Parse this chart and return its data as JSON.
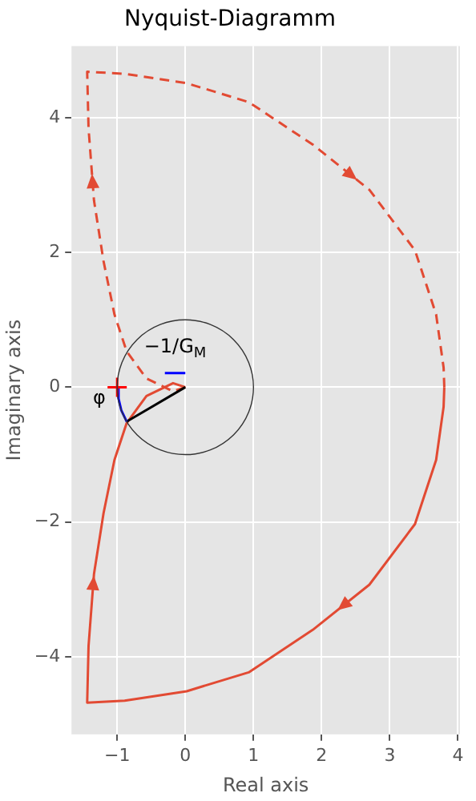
{
  "chart_data": {
    "type": "line",
    "title": "Nyquist-Diagramm",
    "xlabel": "Real axis",
    "ylabel": "Imaginary axis",
    "xlim": [
      -1.67,
      4.03
    ],
    "ylim": [
      -5.15,
      5.06
    ],
    "xticks": [
      {
        "value": -1,
        "label": "−1"
      },
      0,
      1,
      2,
      3,
      4
    ],
    "yticks": [
      {
        "value": -4,
        "label": "−4"
      },
      {
        "value": -2,
        "label": "−2"
      },
      0,
      2,
      4
    ],
    "grid": true,
    "legend": false,
    "marker": "none",
    "annotations": [
      {
        "text": "−1/G$_{M}$",
        "x": -0.15,
        "y": 0.21
      },
      {
        "text": "φ",
        "x": -0.98,
        "y": -0.17
      }
    ],
    "series": [
      {
        "color": "#e24a33",
        "line_style": "solid",
        "x": [
          3.8,
          3.79,
          3.68,
          3.37,
          2.7,
          1.87,
          0.93,
          0.02,
          -0.89,
          -1.44,
          -1.42,
          -1.34,
          -1.2,
          -1.04,
          -0.86,
          -0.57,
          -0.18,
          0
        ],
        "values": [
          0,
          -0.29,
          -1.08,
          -2.03,
          -2.93,
          -3.6,
          -4.23,
          -4.51,
          -4.65,
          -4.68,
          -3.84,
          -2.77,
          -1.87,
          -1.08,
          -0.53,
          -0.13,
          0.06,
          0
        ]
      },
      {
        "color": "#e24a33",
        "line_style": "dashed",
        "x": [
          0,
          -0.18,
          -0.57,
          -0.86,
          -1.04,
          -1.2,
          -1.34,
          -1.42,
          -1.44,
          -0.89,
          0.02,
          0.93,
          1.87,
          2.7,
          3.37,
          3.68,
          3.79,
          3.8
        ],
        "values": [
          0,
          -0.06,
          0.13,
          0.53,
          1.08,
          1.87,
          2.77,
          3.84,
          4.68,
          4.65,
          4.51,
          4.23,
          3.6,
          2.93,
          2.03,
          1.08,
          0.29,
          0
        ]
      },
      {
        "color": "#000000",
        "line_style": "solid",
        "x": [
          0,
          -0.86
        ],
        "values": [
          0,
          -0.51
        ]
      },
      {
        "color": "#0000ff",
        "line_style": "solid",
        "x": [
          -1,
          -0.98,
          -0.94,
          -0.86
        ],
        "values": [
          0,
          -0.17,
          -0.34,
          -0.51
        ]
      },
      {
        "color": "#0000ff",
        "line_style": "solid",
        "x": [
          -0.3,
          0
        ],
        "values": [
          0.21,
          0.21
        ]
      },
      {
        "color": "#ff0000",
        "marker": "cross",
        "x": [
          -1
        ],
        "values": [
          0
        ]
      }
    ]
  }
}
